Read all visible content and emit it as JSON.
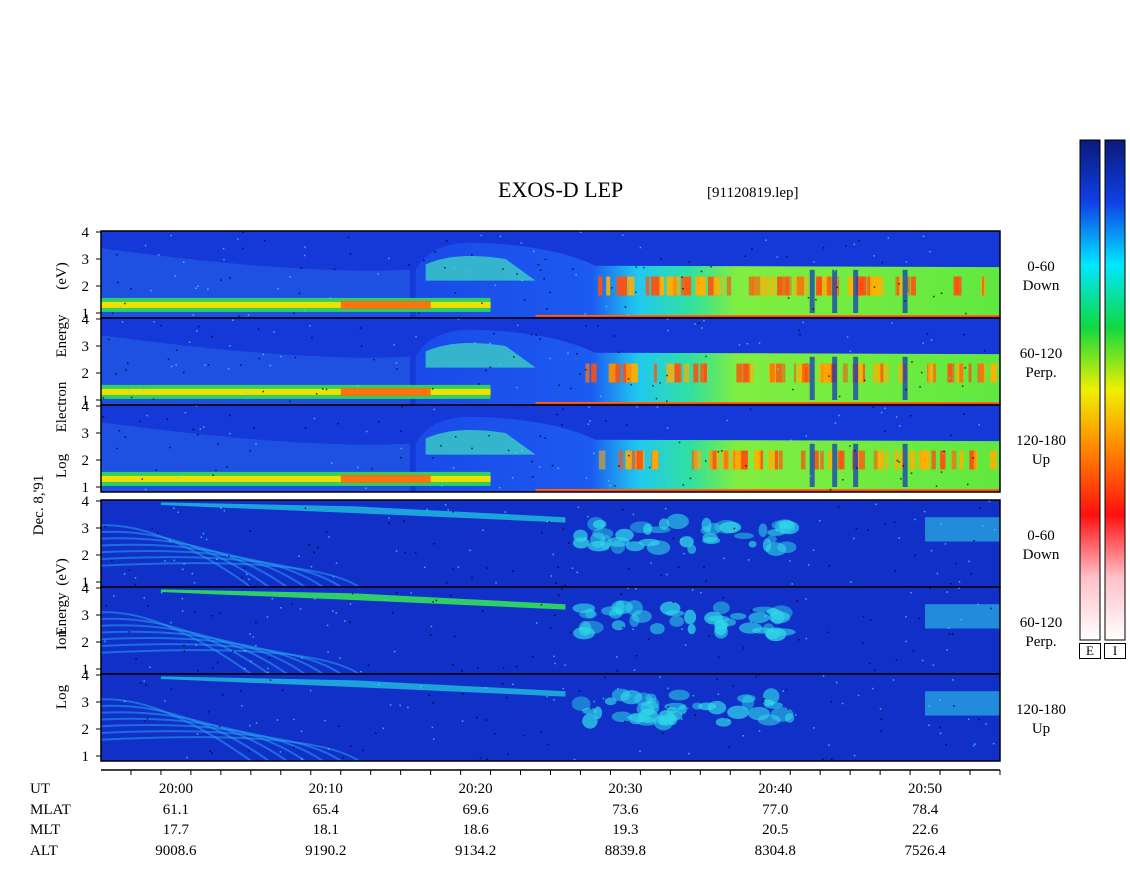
{
  "header": {
    "title": "EXOS-D LEP",
    "file": "[91120819.lep]"
  },
  "side_labels": {
    "date": "Dec. 8,'91",
    "electron": [
      "Log",
      "Electron",
      "Energy",
      "(eV)"
    ],
    "ion": [
      "Log",
      "Ion",
      "Energy",
      "(eV)"
    ]
  },
  "panels": [
    {
      "species": "Electron",
      "angle": "0-60",
      "dir": "Down"
    },
    {
      "species": "Electron",
      "angle": "60-120",
      "dir": "Perp."
    },
    {
      "species": "Electron",
      "angle": "120-180",
      "dir": "Up"
    },
    {
      "species": "Ion",
      "angle": "0-60",
      "dir": "Down"
    },
    {
      "species": "Ion",
      "angle": "60-120",
      "dir": "Perp."
    },
    {
      "species": "Ion",
      "angle": "120-180",
      "dir": "Up"
    }
  ],
  "colorbar": {
    "labels": [
      "E",
      "I"
    ],
    "colors": [
      "#0a1a78",
      "#1040e8",
      "#00e8ff",
      "#10d840",
      "#f0f000",
      "#ff8000",
      "#ff1010",
      "#ffc0c8",
      "#ffffff"
    ]
  },
  "chart_data": {
    "type": "heatmap",
    "title": "EXOS-D LEP",
    "ylabel": "Log Energy (eV)",
    "yticks": [
      1,
      2,
      3,
      4
    ],
    "ylim": [
      1,
      4
    ],
    "xlim": [
      "19:55",
      "20:55"
    ],
    "xticks": [
      "20:00",
      "20:10",
      "20:20",
      "20:30",
      "20:40",
      "20:50"
    ],
    "orbit_table": {
      "rows": [
        {
          "label": "UT",
          "values": [
            "20:00",
            "20:10",
            "20:20",
            "20:30",
            "20:40",
            "20:50"
          ]
        },
        {
          "label": "MLAT",
          "values": [
            "61.1",
            "65.4",
            "69.6",
            "73.6",
            "77.0",
            "78.4"
          ]
        },
        {
          "label": "MLT",
          "values": [
            "17.7",
            "18.1",
            "18.6",
            "19.3",
            "20.5",
            "22.6"
          ]
        },
        {
          "label": "ALT",
          "values": [
            "9008.6",
            "9190.2",
            "9134.2",
            "8839.8",
            "8304.8",
            "7526.4"
          ]
        }
      ]
    }
  }
}
